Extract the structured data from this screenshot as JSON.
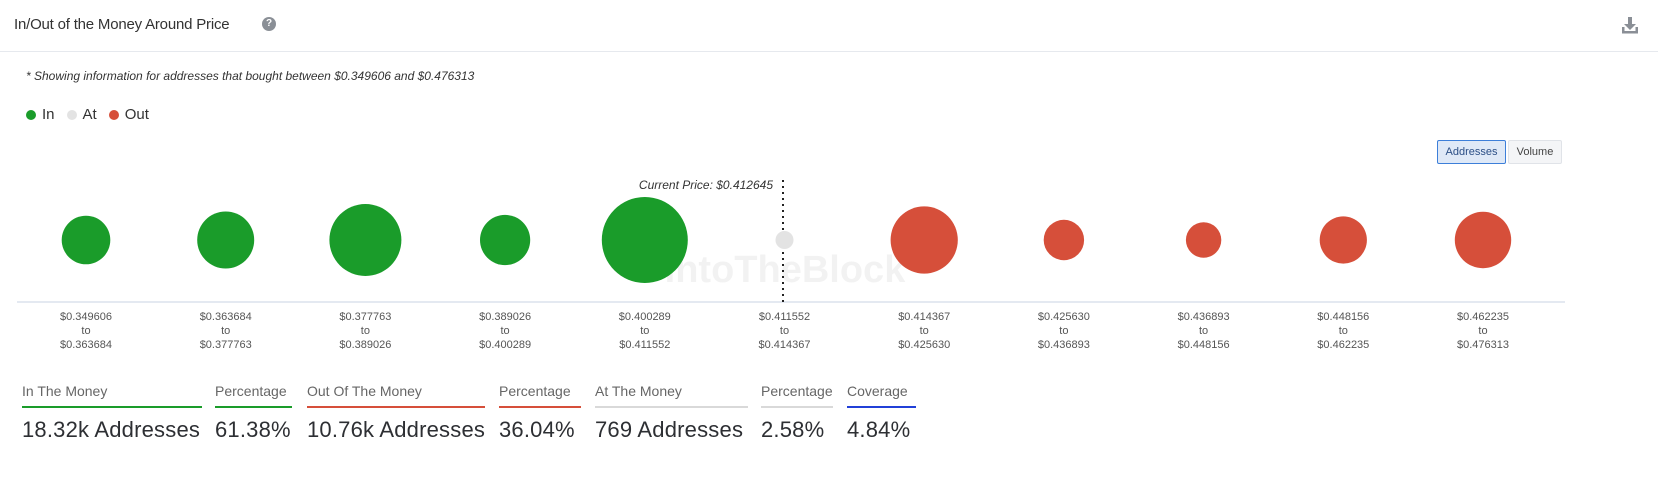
{
  "header": {
    "title": "In/Out of the Money Around Price",
    "help_icon": "question-circle-icon",
    "download_icon": "download-icon"
  },
  "note": "* Showing information for addresses that bought between $0.349606 and $0.476313",
  "legend": [
    {
      "label": "In",
      "color": "#1a9c2a"
    },
    {
      "label": "At",
      "color": "#e3e3e3"
    },
    {
      "label": "Out",
      "color": "#d64f3a"
    }
  ],
  "toggles": {
    "addresses": "Addresses",
    "volume": "Volume",
    "selected": "Addresses"
  },
  "watermark": "IntoTheBlock",
  "chart_data": {
    "type": "bubble",
    "current_price_label": "Current Price: $0.412645",
    "current_price": 0.412645,
    "bubbles": [
      {
        "from": "$0.349606",
        "to": "$0.363684",
        "status": "in",
        "relative_size": 0.32
      },
      {
        "from": "$0.363684",
        "to": "$0.377763",
        "status": "in",
        "relative_size": 0.44
      },
      {
        "from": "$0.377763",
        "to": "$0.389026",
        "status": "in",
        "relative_size": 0.7
      },
      {
        "from": "$0.389026",
        "to": "$0.400289",
        "status": "in",
        "relative_size": 0.34
      },
      {
        "from": "$0.400289",
        "to": "$0.411552",
        "status": "in",
        "relative_size": 1.0
      },
      {
        "from": "$0.411552",
        "to": "$0.414367",
        "status": "at",
        "relative_size": 0.04
      },
      {
        "from": "$0.414367",
        "to": "$0.425630",
        "status": "out",
        "relative_size": 0.61
      },
      {
        "from": "$0.425630",
        "to": "$0.436893",
        "status": "out",
        "relative_size": 0.22
      },
      {
        "from": "$0.436893",
        "to": "$0.448156",
        "status": "out",
        "relative_size": 0.17
      },
      {
        "from": "$0.448156",
        "to": "$0.462235",
        "status": "out",
        "relative_size": 0.3
      },
      {
        "from": "$0.462235",
        "to": "$0.476313",
        "status": "out",
        "relative_size": 0.43
      }
    ],
    "range_separator": "to",
    "colors": {
      "in": "#1a9c2a",
      "at": "#e3e3e3",
      "out": "#d64f3a"
    }
  },
  "stats": [
    {
      "label": "In The Money",
      "value": "18.32k Addresses",
      "color": "#1a9c2a"
    },
    {
      "label": "Percentage",
      "value": "61.38%",
      "color": "#1a9c2a"
    },
    {
      "label": "Out Of The Money",
      "value": "10.76k Addresses",
      "color": "#d64f3a"
    },
    {
      "label": "Percentage",
      "value": "36.04%",
      "color": "#d64f3a"
    },
    {
      "label": "At The Money",
      "value": "769 Addresses",
      "color": "#d9d9d9"
    },
    {
      "label": "Percentage",
      "value": "2.58%",
      "color": "#d9d9d9"
    },
    {
      "label": "Coverage",
      "value": "4.84%",
      "color": "#2140d8"
    }
  ]
}
